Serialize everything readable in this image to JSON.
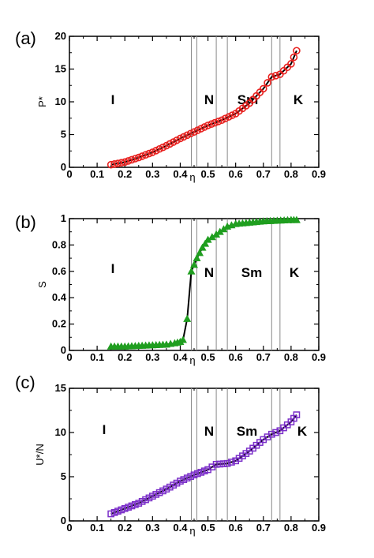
{
  "chart_data": [
    {
      "panel": "(a)",
      "type": "line",
      "xlabel": "η",
      "ylabel": "P*",
      "xlim": [
        0,
        0.9
      ],
      "ylim": [
        0,
        20
      ],
      "xticks": [
        "0",
        "0.1",
        "0.2",
        "0.3",
        "0.4",
        "0.5",
        "0.6",
        "0.7",
        "0.8",
        "0.9"
      ],
      "yticks": [
        "0",
        "5",
        "10",
        "15",
        "20"
      ],
      "marker": "circle",
      "color": "#e8201e",
      "line_color": "#000000",
      "x": [
        0.15,
        0.2,
        0.25,
        0.3,
        0.35,
        0.4,
        0.45,
        0.5,
        0.55,
        0.6,
        0.65,
        0.7,
        0.73,
        0.76,
        0.8,
        0.82
      ],
      "y": [
        0.4,
        0.8,
        1.5,
        2.3,
        3.3,
        4.4,
        5.4,
        6.4,
        7.2,
        8.2,
        9.8,
        12.0,
        13.8,
        14.2,
        15.8,
        17.8
      ],
      "phase_labels": [
        "I",
        "N",
        "Sm",
        "K"
      ]
    },
    {
      "panel": "(b)",
      "type": "line",
      "xlabel": "η",
      "ylabel": "S",
      "xlim": [
        0,
        0.9
      ],
      "ylim": [
        0,
        1
      ],
      "xticks": [
        "0",
        "0.1",
        "0.2",
        "0.3",
        "0.4",
        "0.5",
        "0.6",
        "0.7",
        "0.8",
        "0.9"
      ],
      "yticks": [
        "0",
        "0.2",
        "0.4",
        "0.6",
        "0.8",
        "1"
      ],
      "marker": "triangle",
      "color": "#1f9e1f",
      "line_color": "#000000",
      "x": [
        0.15,
        0.2,
        0.25,
        0.3,
        0.35,
        0.38,
        0.4,
        0.41,
        0.425,
        0.44,
        0.46,
        0.48,
        0.5,
        0.53,
        0.57,
        0.6,
        0.65,
        0.7,
        0.75,
        0.8,
        0.82
      ],
      "y": [
        0.03,
        0.03,
        0.035,
        0.04,
        0.045,
        0.055,
        0.065,
        0.08,
        0.24,
        0.6,
        0.7,
        0.78,
        0.84,
        0.88,
        0.94,
        0.96,
        0.97,
        0.98,
        0.985,
        0.99,
        0.99
      ],
      "phase_labels": [
        "I",
        "N",
        "Sm",
        "K"
      ]
    },
    {
      "panel": "(c)",
      "type": "line",
      "xlabel": "η",
      "ylabel": "U*/N",
      "xlim": [
        0,
        0.9
      ],
      "ylim": [
        0,
        15
      ],
      "xticks": [
        "0",
        "0.1",
        "0.2",
        "0.3",
        "0.4",
        "0.5",
        "0.6",
        "0.7",
        "0.8",
        "0.9"
      ],
      "yticks": [
        "0",
        "5",
        "10",
        "15"
      ],
      "marker": "square",
      "color": "#7b2fc9",
      "line_color": "#000000",
      "x": [
        0.15,
        0.2,
        0.25,
        0.3,
        0.35,
        0.4,
        0.45,
        0.5,
        0.53,
        0.57,
        0.6,
        0.65,
        0.7,
        0.73,
        0.76,
        0.8,
        0.82
      ],
      "y": [
        0.8,
        1.4,
        2.0,
        2.8,
        3.6,
        4.5,
        5.2,
        5.8,
        6.4,
        6.5,
        6.8,
        7.9,
        9.2,
        9.8,
        10.2,
        11.2,
        12.0
      ],
      "phase_labels": [
        "I",
        "N",
        "Sm",
        "K"
      ]
    }
  ],
  "phase_boundaries": [
    0.44,
    0.46,
    0.53,
    0.57,
    0.73,
    0.76
  ]
}
